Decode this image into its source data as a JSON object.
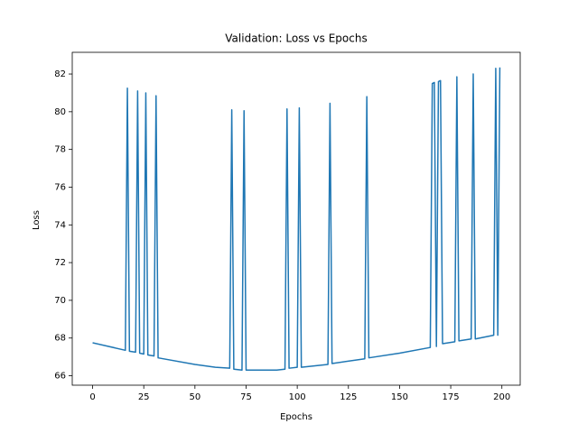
{
  "chart_data": {
    "type": "line",
    "title": "Validation: Loss vs Epochs",
    "x_label": "Epochs",
    "y_label": "Loss",
    "x": [
      0,
      16,
      17,
      18,
      21,
      22,
      23,
      25,
      26,
      27,
      30,
      31,
      32,
      50,
      60,
      67,
      68,
      69,
      73,
      74,
      75,
      90,
      94,
      95,
      96,
      100,
      101,
      102,
      115,
      116,
      117,
      133,
      134,
      135,
      150,
      165,
      166,
      167,
      168,
      169,
      170,
      171,
      177,
      178,
      179,
      185,
      186,
      187,
      196,
      197,
      198,
      199
    ],
    "series": [
      {
        "name": "Loss",
        "color": "#1f77b4",
        "values": [
          67.75,
          67.35,
          81.25,
          67.3,
          67.25,
          81.1,
          67.2,
          67.15,
          81.0,
          67.1,
          67.05,
          80.85,
          66.95,
          66.6,
          66.45,
          66.4,
          80.1,
          66.35,
          66.3,
          80.05,
          66.3,
          66.3,
          66.35,
          80.15,
          66.4,
          66.45,
          80.2,
          66.45,
          66.6,
          80.45,
          66.65,
          66.9,
          80.8,
          66.95,
          67.2,
          67.5,
          81.5,
          81.55,
          67.55,
          81.6,
          81.65,
          67.7,
          67.8,
          81.85,
          67.85,
          67.95,
          82.0,
          67.95,
          68.15,
          82.3,
          68.15,
          82.35
        ]
      }
    ],
    "xlim": [
      -9.95,
      208.95
    ],
    "xticks": [
      0,
      25,
      50,
      75,
      100,
      125,
      150,
      175,
      200
    ],
    "ylim": [
      65.5,
      83.15
    ],
    "yticks": [
      66,
      68,
      70,
      72,
      74,
      76,
      78,
      80,
      82
    ],
    "grid": false
  }
}
